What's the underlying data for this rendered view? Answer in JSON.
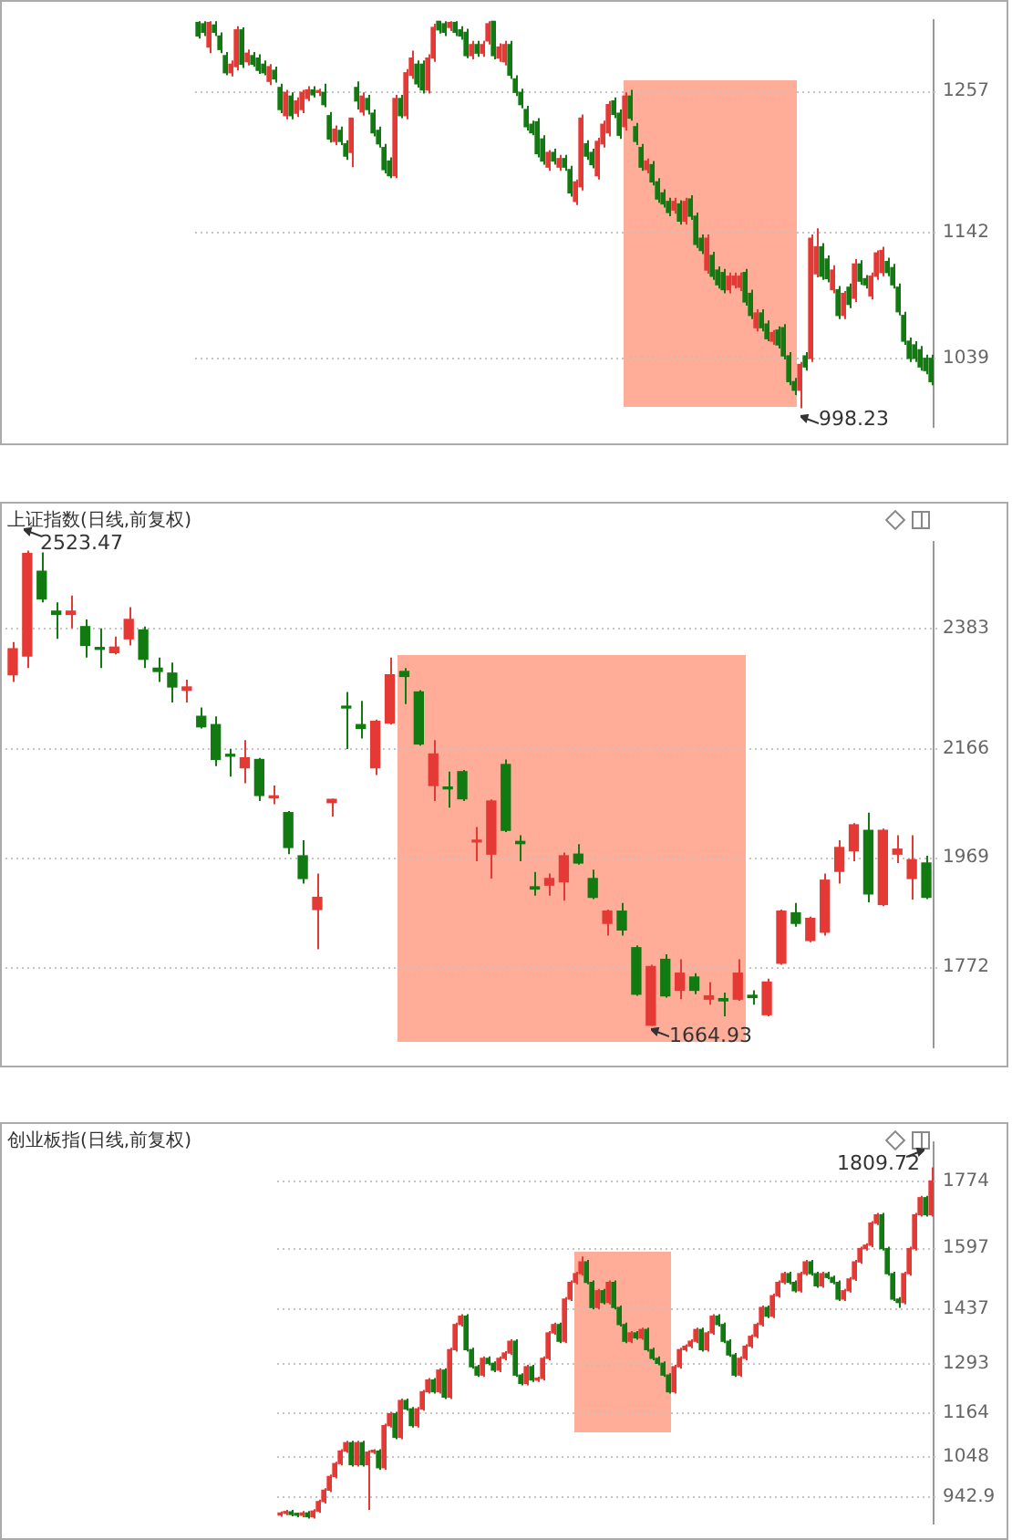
{
  "chart_data": [
    {
      "type": "candlestick",
      "categories": [
        null,
        null,
        null,
        null,
        null,
        null,
        null,
        null,
        null,
        null,
        null,
        null,
        null,
        null,
        null,
        null,
        null,
        null,
        null,
        null,
        null,
        null,
        null,
        null,
        null,
        null,
        null,
        null,
        null,
        null,
        null,
        null,
        null,
        null,
        null,
        null,
        null,
        null,
        null,
        null,
        null,
        null,
        null,
        null,
        null,
        null,
        null,
        null,
        null,
        null,
        null,
        null,
        null,
        null,
        null,
        null,
        null,
        null,
        null,
        null,
        null,
        null,
        null,
        null,
        null,
        null,
        null,
        null,
        null,
        null,
        null,
        null,
        null,
        null,
        null,
        null,
        null,
        null,
        null,
        null,
        null,
        null,
        null,
        null,
        null,
        null,
        null,
        null,
        null,
        null,
        null,
        null,
        null,
        null,
        null,
        null,
        null,
        null,
        null,
        null,
        null,
        null,
        null,
        null,
        null,
        null,
        null,
        null,
        null,
        null,
        null,
        null,
        null,
        null,
        null,
        null,
        null,
        null,
        null,
        null,
        null,
        null,
        null,
        null,
        null,
        null,
        null,
        null,
        null,
        null,
        null,
        null,
        null,
        null,
        null
      ],
      "ohlc": [
        [
          1313,
          1314,
          1300,
          1302
        ],
        [
          1312,
          1314,
          1302,
          1305
        ],
        [
          1293,
          1314,
          1288,
          1313
        ],
        [
          1311,
          1314,
          1302,
          1305
        ],
        [
          1302,
          1305,
          1288,
          1291
        ],
        [
          1286,
          1289,
          1270,
          1272
        ],
        [
          1272,
          1282,
          1269,
          1279
        ],
        [
          1277,
          1310,
          1274,
          1307
        ],
        [
          1307,
          1309,
          1276,
          1279
        ],
        [
          1281,
          1291,
          1278,
          1288
        ],
        [
          1286,
          1289,
          1277,
          1279
        ],
        [
          1284,
          1287,
          1271,
          1274
        ],
        [
          1279,
          1282,
          1270,
          1272
        ],
        [
          1265,
          1279,
          1262,
          1277
        ],
        [
          1274,
          1277,
          1264,
          1267
        ],
        [
          1260,
          1263,
          1239,
          1242
        ],
        [
          1237,
          1258,
          1234,
          1256
        ],
        [
          1253,
          1256,
          1234,
          1237
        ],
        [
          1239,
          1252,
          1236,
          1249
        ],
        [
          1242,
          1258,
          1239,
          1256
        ],
        [
          1251,
          1261,
          1249,
          1258
        ],
        [
          1258,
          1261,
          1252,
          1254
        ],
        [
          1256,
          1259,
          1253,
          1257
        ],
        [
          1256,
          1263,
          1244,
          1246
        ],
        [
          1237,
          1240,
          1215,
          1218
        ],
        [
          1216,
          1229,
          1213,
          1226
        ],
        [
          1225,
          1228,
          1213,
          1216
        ],
        [
          1214,
          1217,
          1201,
          1204
        ],
        [
          1207,
          1235,
          1195,
          1235
        ],
        [
          1260,
          1265,
          1242,
          1249
        ],
        [
          1240,
          1256,
          1237,
          1253
        ],
        [
          1251,
          1254,
          1238,
          1242
        ],
        [
          1239,
          1242,
          1220,
          1223
        ],
        [
          1225,
          1228,
          1211,
          1214
        ],
        [
          1211,
          1214,
          1190,
          1193
        ],
        [
          1200,
          1203,
          1186,
          1188
        ],
        [
          1188,
          1254,
          1186,
          1251
        ],
        [
          1251,
          1254,
          1235,
          1237
        ],
        [
          1237,
          1275,
          1234,
          1272
        ],
        [
          1270,
          1290,
          1267,
          1284
        ],
        [
          1279,
          1282,
          1260,
          1263
        ],
        [
          1279,
          1282,
          1255,
          1258
        ],
        [
          1258,
          1287,
          1255,
          1284
        ],
        [
          1284,
          1312,
          1281,
          1309
        ],
        [
          1314,
          1314,
          1304,
          1307
        ],
        [
          1312,
          1314,
          1302,
          1305
        ],
        [
          1309,
          1314,
          1306,
          1313
        ],
        [
          1313,
          1314,
          1302,
          1305
        ],
        [
          1307,
          1310,
          1299,
          1302
        ],
        [
          1305,
          1308,
          1284,
          1286
        ],
        [
          1286,
          1298,
          1283,
          1295
        ],
        [
          1295,
          1298,
          1285,
          1288
        ],
        [
          1288,
          1298,
          1285,
          1295
        ],
        [
          1298,
          1314,
          1295,
          1312
        ],
        [
          1314,
          1314,
          1283,
          1286
        ],
        [
          1284,
          1296,
          1281,
          1293
        ],
        [
          1281,
          1298,
          1278,
          1295
        ],
        [
          1295,
          1298,
          1267,
          1270
        ],
        [
          1267,
          1270,
          1253,
          1256
        ],
        [
          1256,
          1259,
          1243,
          1246
        ],
        [
          1242,
          1245,
          1225,
          1228
        ],
        [
          1230,
          1233,
          1221,
          1223
        ],
        [
          1232,
          1235,
          1203,
          1206
        ],
        [
          1218,
          1221,
          1197,
          1200
        ],
        [
          1195,
          1209,
          1192,
          1207
        ],
        [
          1207,
          1210,
          1197,
          1200
        ],
        [
          1195,
          1205,
          1192,
          1202
        ],
        [
          1202,
          1205,
          1192,
          1195
        ],
        [
          1193,
          1196,
          1171,
          1174
        ],
        [
          1167,
          1185,
          1164,
          1183
        ],
        [
          1179,
          1238,
          1176,
          1235
        ],
        [
          1214,
          1217,
          1201,
          1204
        ],
        [
          1207,
          1210,
          1194,
          1197
        ],
        [
          1188,
          1219,
          1185,
          1216
        ],
        [
          1214,
          1233,
          1211,
          1230
        ],
        [
          1223,
          1249,
          1220,
          1246
        ],
        [
          1249,
          1252,
          1235,
          1238
        ],
        [
          1239,
          1242,
          1218,
          1221
        ],
        [
          1228,
          1256,
          1225,
          1253
        ],
        [
          1253,
          1258,
          1233,
          1235
        ],
        [
          1228,
          1231,
          1213,
          1216
        ],
        [
          1211,
          1214,
          1192,
          1195
        ],
        [
          1193,
          1202,
          1190,
          1200
        ],
        [
          1197,
          1200,
          1180,
          1183
        ],
        [
          1183,
          1186,
          1166,
          1169
        ],
        [
          1174,
          1177,
          1162,
          1165
        ],
        [
          1167,
          1170,
          1155,
          1158
        ],
        [
          1160,
          1170,
          1157,
          1167
        ],
        [
          1165,
          1168,
          1148,
          1151
        ],
        [
          1151,
          1170,
          1148,
          1167
        ],
        [
          1169,
          1172,
          1152,
          1155
        ],
        [
          1155,
          1158,
          1129,
          1132
        ],
        [
          1137,
          1140,
          1124,
          1127
        ],
        [
          1111,
          1140,
          1108,
          1137
        ],
        [
          1123,
          1126,
          1103,
          1106
        ],
        [
          1111,
          1114,
          1096,
          1099
        ],
        [
          1109,
          1112,
          1092,
          1095
        ],
        [
          1095,
          1109,
          1092,
          1106
        ],
        [
          1099,
          1109,
          1096,
          1106
        ],
        [
          1097,
          1109,
          1094,
          1106
        ],
        [
          1109,
          1112,
          1082,
          1085
        ],
        [
          1092,
          1095,
          1071,
          1074
        ],
        [
          1064,
          1079,
          1061,
          1076
        ],
        [
          1076,
          1079,
          1061,
          1064
        ],
        [
          1067,
          1070,
          1053,
          1055
        ],
        [
          1053,
          1062,
          1050,
          1060
        ],
        [
          1062,
          1065,
          1047,
          1050
        ],
        [
          1064,
          1067,
          1038,
          1041
        ],
        [
          1041,
          1044,
          1017,
          1020
        ],
        [
          1020,
          1023,
          1009,
          1013
        ],
        [
          1013,
          1036,
          998.23,
          1034
        ],
        [
          1041,
          1044,
          1029,
          1032
        ],
        [
          1039,
          1140,
          1036,
          1137
        ],
        [
          1108,
          1145,
          1105,
          1130
        ],
        [
          1130,
          1133,
          1103,
          1106
        ],
        [
          1120,
          1123,
          1101,
          1104
        ],
        [
          1095,
          1115,
          1092,
          1111
        ],
        [
          1095,
          1098,
          1071,
          1074
        ],
        [
          1074,
          1094,
          1071,
          1092
        ],
        [
          1097,
          1100,
          1080,
          1083
        ],
        [
          1088,
          1120,
          1085,
          1116
        ],
        [
          1116,
          1119,
          1099,
          1102
        ],
        [
          1104,
          1107,
          1096,
          1099
        ],
        [
          1090,
          1109,
          1087,
          1106
        ],
        [
          1106,
          1127,
          1103,
          1125
        ],
        [
          1109,
          1130,
          1106,
          1127
        ],
        [
          1118,
          1121,
          1106,
          1109
        ],
        [
          1113,
          1116,
          1096,
          1099
        ],
        [
          1097,
          1100,
          1074,
          1077
        ],
        [
          1074,
          1077,
          1050,
          1053
        ],
        [
          1053,
          1056,
          1036,
          1039
        ],
        [
          1050,
          1053,
          1036,
          1039
        ],
        [
          1046,
          1049,
          1029,
          1032
        ],
        [
          1039,
          1042,
          1026,
          1029
        ],
        [
          1039,
          1042,
          1017,
          1020
        ]
      ],
      "ylim": [
        983,
        1315
      ],
      "yticks": [
        1039,
        1142,
        1257
      ],
      "grid": "y",
      "tick_labels": "y",
      "annotations": [
        "998.23"
      ]
    },
    {
      "type": "candlestick",
      "title": "上证指数(日线,前复权)",
      "categories": [
        null,
        null,
        null,
        null,
        null,
        null,
        null,
        null,
        null,
        null,
        null,
        null,
        null,
        null,
        null,
        null,
        null,
        null,
        null,
        null,
        null,
        null,
        null,
        null,
        null,
        null,
        null,
        null,
        null,
        null,
        null,
        null,
        null,
        null,
        null,
        null,
        null,
        null,
        null,
        null,
        null,
        null,
        null,
        null,
        null,
        null,
        null,
        null,
        null,
        null,
        null,
        null,
        null,
        null,
        null,
        null,
        null,
        null,
        null,
        null,
        null,
        null,
        null,
        null
      ],
      "ohlc": [
        [
          2299,
          2358,
          2286,
          2346
        ],
        [
          2333,
          2523.47,
          2311,
          2518
        ],
        [
          2486,
          2520,
          2430,
          2436
        ],
        [
          2414,
          2430,
          2364,
          2408
        ],
        [
          2408,
          2442,
          2383,
          2414
        ],
        [
          2386,
          2399,
          2330,
          2352
        ],
        [
          2346,
          2383,
          2311,
          2345
        ],
        [
          2339,
          2368,
          2336,
          2349
        ],
        [
          2364,
          2421,
          2352,
          2399
        ],
        [
          2380,
          2386,
          2311,
          2327
        ],
        [
          2311,
          2330,
          2286,
          2305
        ],
        [
          2302,
          2321,
          2249,
          2277
        ],
        [
          2271,
          2290,
          2249,
          2277
        ],
        [
          2224,
          2240,
          2202,
          2205
        ],
        [
          2209,
          2224,
          2134,
          2146
        ],
        [
          2153,
          2165,
          2115,
          2152
        ],
        [
          2131,
          2181,
          2103,
          2149
        ],
        [
          2146,
          2149,
          2071,
          2081
        ],
        [
          2077,
          2099,
          2065,
          2079
        ],
        [
          2050,
          2053,
          1975,
          1987
        ],
        [
          1972,
          2000,
          1922,
          1931
        ],
        [
          1875,
          1940,
          1803,
          1897
        ],
        [
          2068,
          2075,
          2043,
          2074
        ],
        [
          2240,
          2268,
          2165,
          2239
        ],
        [
          2209,
          2252,
          2184,
          2202
        ],
        [
          2131,
          2218,
          2118,
          2215
        ],
        [
          2212,
          2330,
          2209,
          2299
        ],
        [
          2305,
          2311,
          2246,
          2296
        ],
        [
          2268,
          2271,
          2171,
          2174
        ],
        [
          2099,
          2181,
          2071,
          2156
        ],
        [
          2094,
          2124,
          2059,
          2093
        ],
        [
          2124,
          2127,
          2071,
          2075
        ],
        [
          1997,
          2024,
          1962,
          2000
        ],
        [
          1975,
          2074,
          1931,
          2071
        ],
        [
          2137,
          2146,
          2015,
          2018
        ],
        [
          1998,
          2009,
          1962,
          1994
        ],
        [
          1916,
          1943,
          1900,
          1912
        ],
        [
          1919,
          1940,
          1900,
          1931
        ],
        [
          1925,
          1978,
          1891,
          1972
        ],
        [
          1975,
          1993,
          1956,
          1959
        ],
        [
          1931,
          1947,
          1894,
          1897
        ],
        [
          1850,
          1875,
          1828,
          1872
        ],
        [
          1872,
          1887,
          1828,
          1838
        ],
        [
          1806,
          1810,
          1719,
          1722
        ],
        [
          1666,
          1775,
          1664.93,
          1772
        ],
        [
          1785,
          1794,
          1716,
          1719
        ],
        [
          1729,
          1785,
          1713,
          1760
        ],
        [
          1753,
          1760,
          1722,
          1729
        ],
        [
          1713,
          1744,
          1703,
          1719
        ],
        [
          1714,
          1725,
          1682,
          1710
        ],
        [
          1713,
          1785,
          1710,
          1760
        ],
        [
          1720,
          1729,
          1703,
          1716
        ],
        [
          1685,
          1750,
          1682,
          1744
        ],
        [
          1778,
          1875,
          1775,
          1872
        ],
        [
          1869,
          1887,
          1844,
          1850
        ],
        [
          1819,
          1862,
          1816,
          1859
        ],
        [
          1834,
          1940,
          1828,
          1928
        ],
        [
          1944,
          2000,
          1922,
          1987
        ],
        [
          1981,
          2031,
          1962,
          2028
        ],
        [
          2018,
          2050,
          1888,
          1903
        ],
        [
          1884,
          2021,
          1881,
          2018
        ],
        [
          1975,
          2009,
          1959,
          1984
        ],
        [
          1931,
          2009,
          1893,
          1965
        ],
        [
          1959,
          1972,
          1894,
          1897
        ]
      ],
      "ylim": [
        1626,
        2539
      ],
      "yticks": [
        1772,
        1969,
        2166,
        2383
      ],
      "grid": "y",
      "tick_labels": "y",
      "annotations": [
        "2523.47",
        "1664.93"
      ]
    },
    {
      "type": "candlestick",
      "title": "创业板指(日线,前复权)",
      "categories": [
        null,
        null,
        null,
        null,
        null,
        null,
        null,
        null,
        null,
        null,
        null,
        null,
        null,
        null,
        null,
        null,
        null,
        null,
        null,
        null,
        null,
        null,
        null,
        null,
        null,
        null,
        null,
        null,
        null,
        null,
        null,
        null,
        null,
        null,
        null,
        null,
        null,
        null,
        null,
        null,
        null,
        null,
        null,
        null,
        null,
        null,
        null,
        null,
        null,
        null,
        null,
        null,
        null,
        null,
        null,
        null,
        null,
        null,
        null,
        null,
        null,
        null,
        null,
        null,
        null,
        null,
        null,
        null,
        null,
        null,
        null,
        null,
        null,
        null,
        null,
        null,
        null,
        null,
        null,
        null,
        null,
        null,
        null,
        null,
        null,
        null,
        null,
        null,
        null,
        null,
        null,
        null,
        null,
        null,
        null,
        null,
        null,
        null,
        null,
        null,
        null,
        null,
        null,
        null,
        null,
        null,
        null,
        null,
        null,
        null,
        null,
        null,
        null,
        null,
        null,
        null,
        null,
        null,
        null,
        null
      ],
      "ohlc": [
        [
          895,
          904,
          890,
          899
        ],
        [
          899,
          908,
          894,
          903
        ],
        [
          903,
          908,
          891,
          896
        ],
        [
          896,
          901,
          889,
          894
        ],
        [
          894,
          905,
          889,
          900
        ],
        [
          900,
          905,
          885,
          890
        ],
        [
          890,
          910,
          885,
          905
        ],
        [
          905,
          935,
          900,
          930
        ],
        [
          930,
          965,
          925,
          960
        ],
        [
          960,
          1001,
          955,
          996
        ],
        [
          996,
          1035,
          991,
          1030
        ],
        [
          1030,
          1068,
          1025,
          1063
        ],
        [
          1063,
          1090,
          1058,
          1085
        ],
        [
          1085,
          1090,
          1022,
          1027
        ],
        [
          1027,
          1090,
          1022,
          1085
        ],
        [
          1085,
          1090,
          1022,
          1027
        ],
        [
          1027,
          1065,
          908,
          1060
        ],
        [
          1060,
          1068,
          1055,
          1063
        ],
        [
          1063,
          1068,
          1014,
          1019
        ],
        [
          1019,
          1135,
          1014,
          1130
        ],
        [
          1130,
          1166,
          1125,
          1161
        ],
        [
          1161,
          1166,
          1094,
          1099
        ],
        [
          1099,
          1201,
          1094,
          1196
        ],
        [
          1196,
          1201,
          1169,
          1174
        ],
        [
          1174,
          1179,
          1125,
          1130
        ],
        [
          1130,
          1179,
          1125,
          1174
        ],
        [
          1174,
          1224,
          1169,
          1219
        ],
        [
          1219,
          1255,
          1214,
          1250
        ],
        [
          1250,
          1255,
          1214,
          1219
        ],
        [
          1219,
          1281,
          1214,
          1276
        ],
        [
          1276,
          1281,
          1200,
          1205
        ],
        [
          1205,
          1335,
          1200,
          1330
        ],
        [
          1330,
          1401,
          1325,
          1396
        ],
        [
          1396,
          1423,
          1391,
          1418
        ],
        [
          1418,
          1423,
          1325,
          1330
        ],
        [
          1330,
          1335,
          1280,
          1285
        ],
        [
          1285,
          1290,
          1258,
          1263
        ],
        [
          1263,
          1312,
          1258,
          1307
        ],
        [
          1307,
          1312,
          1289,
          1294
        ],
        [
          1294,
          1299,
          1271,
          1276
        ],
        [
          1276,
          1312,
          1271,
          1307
        ],
        [
          1307,
          1326,
          1302,
          1321
        ],
        [
          1321,
          1357,
          1316,
          1352
        ],
        [
          1352,
          1357,
          1258,
          1263
        ],
        [
          1263,
          1268,
          1236,
          1241
        ],
        [
          1241,
          1290,
          1236,
          1285
        ],
        [
          1285,
          1290,
          1245,
          1250
        ],
        [
          1250,
          1259,
          1245,
          1254
        ],
        [
          1254,
          1312,
          1249,
          1307
        ],
        [
          1307,
          1379,
          1302,
          1374
        ],
        [
          1374,
          1401,
          1369,
          1396
        ],
        [
          1396,
          1401,
          1347,
          1352
        ],
        [
          1352,
          1468,
          1347,
          1463
        ],
        [
          1463,
          1512,
          1458,
          1507
        ],
        [
          1507,
          1535,
          1502,
          1530
        ],
        [
          1530,
          1575,
          1525,
          1561
        ],
        [
          1561,
          1566,
          1502,
          1507
        ],
        [
          1507,
          1512,
          1436,
          1441
        ],
        [
          1441,
          1490,
          1436,
          1485
        ],
        [
          1485,
          1490,
          1449,
          1454
        ],
        [
          1454,
          1512,
          1449,
          1507
        ],
        [
          1507,
          1512,
          1436,
          1441
        ],
        [
          1441,
          1446,
          1391,
          1396
        ],
        [
          1396,
          1401,
          1347,
          1352
        ],
        [
          1352,
          1379,
          1347,
          1374
        ],
        [
          1374,
          1379,
          1356,
          1361
        ],
        [
          1361,
          1388,
          1356,
          1383
        ],
        [
          1383,
          1388,
          1325,
          1330
        ],
        [
          1330,
          1335,
          1302,
          1307
        ],
        [
          1307,
          1312,
          1289,
          1294
        ],
        [
          1294,
          1299,
          1258,
          1263
        ],
        [
          1263,
          1268,
          1214,
          1219
        ],
        [
          1219,
          1290,
          1214,
          1285
        ],
        [
          1285,
          1335,
          1280,
          1330
        ],
        [
          1330,
          1344,
          1325,
          1339
        ],
        [
          1339,
          1357,
          1334,
          1352
        ],
        [
          1352,
          1388,
          1347,
          1383
        ],
        [
          1383,
          1388,
          1325,
          1330
        ],
        [
          1330,
          1379,
          1325,
          1374
        ],
        [
          1374,
          1423,
          1369,
          1418
        ],
        [
          1418,
          1423,
          1391,
          1396
        ],
        [
          1396,
          1401,
          1347,
          1352
        ],
        [
          1352,
          1357,
          1311,
          1316
        ],
        [
          1316,
          1321,
          1258,
          1263
        ],
        [
          1263,
          1312,
          1258,
          1307
        ],
        [
          1307,
          1344,
          1302,
          1339
        ],
        [
          1339,
          1370,
          1334,
          1365
        ],
        [
          1365,
          1401,
          1360,
          1396
        ],
        [
          1396,
          1446,
          1391,
          1441
        ],
        [
          1441,
          1446,
          1413,
          1418
        ],
        [
          1418,
          1477,
          1413,
          1472
        ],
        [
          1472,
          1512,
          1467,
          1507
        ],
        [
          1507,
          1535,
          1502,
          1530
        ],
        [
          1530,
          1535,
          1502,
          1507
        ],
        [
          1507,
          1512,
          1480,
          1485
        ],
        [
          1485,
          1535,
          1480,
          1530
        ],
        [
          1530,
          1566,
          1525,
          1561
        ],
        [
          1561,
          1566,
          1525,
          1530
        ],
        [
          1530,
          1535,
          1493,
          1498
        ],
        [
          1498,
          1535,
          1493,
          1530
        ],
        [
          1530,
          1535,
          1515,
          1520
        ],
        [
          1520,
          1525,
          1502,
          1507
        ],
        [
          1507,
          1512,
          1458,
          1463
        ],
        [
          1463,
          1490,
          1458,
          1485
        ],
        [
          1485,
          1521,
          1480,
          1516
        ],
        [
          1516,
          1566,
          1511,
          1561
        ],
        [
          1561,
          1601,
          1556,
          1596
        ],
        [
          1596,
          1610,
          1591,
          1605
        ],
        [
          1605,
          1668,
          1600,
          1663
        ],
        [
          1663,
          1690,
          1658,
          1685
        ],
        [
          1685,
          1690,
          1591,
          1596
        ],
        [
          1596,
          1601,
          1525,
          1530
        ],
        [
          1530,
          1535,
          1458,
          1463
        ],
        [
          1463,
          1468,
          1440,
          1454
        ],
        [
          1454,
          1535,
          1449,
          1530
        ],
        [
          1530,
          1601,
          1525,
          1596
        ],
        [
          1596,
          1690,
          1591,
          1685
        ],
        [
          1685,
          1735,
          1680,
          1730
        ],
        [
          1730,
          1735,
          1680,
          1685
        ],
        [
          1685,
          1809.72,
          1680,
          1774
        ]
      ],
      "ylim": [
        872,
        1876
      ],
      "yticks": [
        942.9,
        1048,
        1164,
        1293,
        1437,
        1597,
        1774
      ],
      "grid": "y",
      "tick_labels": "y",
      "annotations": [
        "1809.72"
      ]
    }
  ]
}
